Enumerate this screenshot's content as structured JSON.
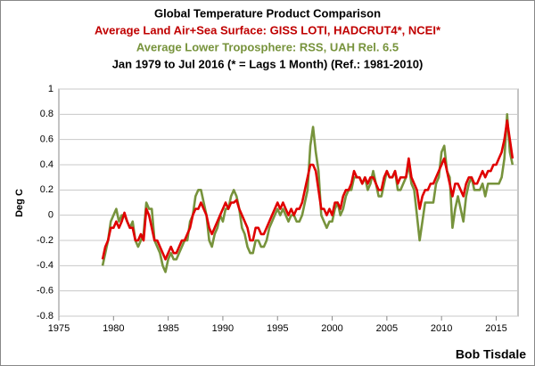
{
  "chart_data": {
    "type": "line",
    "title": "Global Temperature Product Comparison",
    "subtitles": [
      "Average Land Air+Sea Surface: GISS LOTI, HADCRUT4*, NCEI*",
      "Average Lower Troposphere: RSS, UAH Rel. 6.5",
      "Jan 1979 to Jul 2016 (* = Lags 1 Month) (Ref.: 1981-2010)"
    ],
    "ylabel": "Deg C",
    "credit": "Bob Tisdale",
    "x": [
      1979,
      1979.25,
      1979.5,
      1979.75,
      1980,
      1980.25,
      1980.5,
      1980.75,
      1981,
      1981.25,
      1981.5,
      1981.75,
      1982,
      1982.25,
      1982.5,
      1982.75,
      1983,
      1983.25,
      1983.5,
      1983.75,
      1984,
      1984.25,
      1984.5,
      1984.75,
      1985,
      1985.25,
      1985.5,
      1985.75,
      1986,
      1986.25,
      1986.5,
      1986.75,
      1987,
      1987.25,
      1987.5,
      1987.75,
      1988,
      1988.25,
      1988.5,
      1988.75,
      1989,
      1989.25,
      1989.5,
      1989.75,
      1990,
      1990.25,
      1990.5,
      1990.75,
      1991,
      1991.25,
      1991.5,
      1991.75,
      1992,
      1992.25,
      1992.5,
      1992.75,
      1993,
      1993.25,
      1993.5,
      1993.75,
      1994,
      1994.25,
      1994.5,
      1994.75,
      1995,
      1995.25,
      1995.5,
      1995.75,
      1996,
      1996.25,
      1996.5,
      1996.75,
      1997,
      1997.25,
      1997.5,
      1997.75,
      1998,
      1998.25,
      1998.5,
      1998.75,
      1999,
      1999.25,
      1999.5,
      1999.75,
      2000,
      2000.25,
      2000.5,
      2000.75,
      2001,
      2001.25,
      2001.5,
      2001.75,
      2002,
      2002.25,
      2002.5,
      2002.75,
      2003,
      2003.25,
      2003.5,
      2003.75,
      2004,
      2004.25,
      2004.5,
      2004.75,
      2005,
      2005.25,
      2005.5,
      2005.75,
      2006,
      2006.25,
      2006.5,
      2006.75,
      2007,
      2007.25,
      2007.5,
      2007.75,
      2008,
      2008.25,
      2008.5,
      2008.75,
      2009,
      2009.25,
      2009.5,
      2009.75,
      2010,
      2010.25,
      2010.5,
      2010.75,
      2011,
      2011.25,
      2011.5,
      2011.75,
      2012,
      2012.25,
      2012.5,
      2012.75,
      2013,
      2013.25,
      2013.5,
      2013.75,
      2014,
      2014.25,
      2014.5,
      2014.75,
      2015,
      2015.25,
      2015.5,
      2015.75,
      2016,
      2016.25,
      2016.5
    ],
    "series": [
      {
        "color": "#77933c",
        "values": [
          -0.4,
          -0.3,
          -0.2,
          -0.05,
          0.0,
          0.05,
          -0.05,
          0.0,
          0.0,
          -0.05,
          -0.1,
          -0.05,
          -0.2,
          -0.25,
          -0.2,
          -0.15,
          0.1,
          0.05,
          0.05,
          -0.2,
          -0.25,
          -0.3,
          -0.4,
          -0.45,
          -0.35,
          -0.3,
          -0.35,
          -0.35,
          -0.3,
          -0.25,
          -0.2,
          -0.2,
          -0.05,
          0.0,
          0.15,
          0.2,
          0.2,
          0.1,
          0.0,
          -0.2,
          -0.25,
          -0.15,
          -0.1,
          0.0,
          -0.05,
          0.05,
          0.05,
          0.15,
          0.2,
          0.15,
          0.05,
          -0.1,
          -0.15,
          -0.25,
          -0.3,
          -0.3,
          -0.2,
          -0.2,
          -0.25,
          -0.25,
          -0.2,
          -0.1,
          -0.05,
          0.0,
          0.05,
          0.0,
          0.05,
          0.0,
          -0.05,
          0.0,
          0.0,
          -0.05,
          -0.05,
          0.0,
          0.1,
          0.2,
          0.55,
          0.7,
          0.5,
          0.35,
          0.0,
          -0.05,
          -0.1,
          -0.05,
          -0.05,
          0.05,
          0.1,
          0.0,
          0.05,
          0.15,
          0.2,
          0.2,
          0.3,
          0.3,
          0.3,
          0.25,
          0.3,
          0.2,
          0.25,
          0.35,
          0.25,
          0.15,
          0.15,
          0.25,
          0.35,
          0.3,
          0.3,
          0.35,
          0.2,
          0.2,
          0.25,
          0.3,
          0.4,
          0.25,
          0.2,
          0.0,
          -0.2,
          -0.05,
          0.1,
          0.1,
          0.1,
          0.1,
          0.25,
          0.3,
          0.5,
          0.55,
          0.35,
          0.3,
          -0.1,
          0.05,
          0.15,
          0.05,
          -0.05,
          0.15,
          0.25,
          0.3,
          0.2,
          0.2,
          0.2,
          0.25,
          0.15,
          0.25,
          0.25,
          0.25,
          0.25,
          0.25,
          0.3,
          0.45,
          0.8,
          0.5,
          0.4
        ]
      },
      {
        "color": "#e00000",
        "values": [
          -0.35,
          -0.25,
          -0.2,
          -0.1,
          -0.1,
          -0.05,
          -0.1,
          -0.05,
          0.02,
          -0.05,
          -0.1,
          -0.1,
          -0.2,
          -0.2,
          -0.15,
          -0.2,
          0.05,
          0.0,
          -0.1,
          -0.2,
          -0.2,
          -0.25,
          -0.3,
          -0.35,
          -0.3,
          -0.25,
          -0.3,
          -0.3,
          -0.25,
          -0.2,
          -0.2,
          -0.15,
          -0.1,
          0.0,
          0.05,
          0.05,
          0.1,
          0.05,
          0.0,
          -0.1,
          -0.15,
          -0.1,
          -0.05,
          0.0,
          0.05,
          0.1,
          0.05,
          0.1,
          0.1,
          0.12,
          0.05,
          0.0,
          -0.05,
          -0.1,
          -0.2,
          -0.2,
          -0.1,
          -0.1,
          -0.15,
          -0.15,
          -0.1,
          -0.05,
          0.0,
          0.05,
          0.1,
          0.05,
          0.1,
          0.05,
          0.0,
          0.05,
          0.0,
          0.05,
          0.05,
          0.1,
          0.2,
          0.3,
          0.4,
          0.4,
          0.35,
          0.2,
          0.05,
          0.05,
          0.0,
          0.05,
          0.0,
          0.1,
          0.1,
          0.05,
          0.15,
          0.2,
          0.2,
          0.25,
          0.35,
          0.3,
          0.3,
          0.25,
          0.3,
          0.25,
          0.3,
          0.3,
          0.25,
          0.2,
          0.2,
          0.3,
          0.35,
          0.3,
          0.3,
          0.35,
          0.25,
          0.3,
          0.3,
          0.3,
          0.45,
          0.3,
          0.25,
          0.2,
          0.05,
          0.15,
          0.2,
          0.2,
          0.25,
          0.25,
          0.3,
          0.35,
          0.4,
          0.45,
          0.35,
          0.25,
          0.15,
          0.25,
          0.25,
          0.2,
          0.15,
          0.25,
          0.3,
          0.3,
          0.25,
          0.25,
          0.3,
          0.35,
          0.3,
          0.35,
          0.35,
          0.4,
          0.4,
          0.45,
          0.5,
          0.6,
          0.75,
          0.6,
          0.45
        ]
      }
    ],
    "xlim": [
      1975,
      2017
    ],
    "xticks": [
      1975,
      1980,
      1985,
      1990,
      1995,
      2000,
      2005,
      2010,
      2015
    ],
    "ylim": [
      -0.8,
      1
    ],
    "yticks": [
      -0.8,
      -0.6,
      -0.4,
      -0.2,
      0,
      0.2,
      0.4,
      0.6,
      0.8,
      1
    ],
    "grid": true
  }
}
